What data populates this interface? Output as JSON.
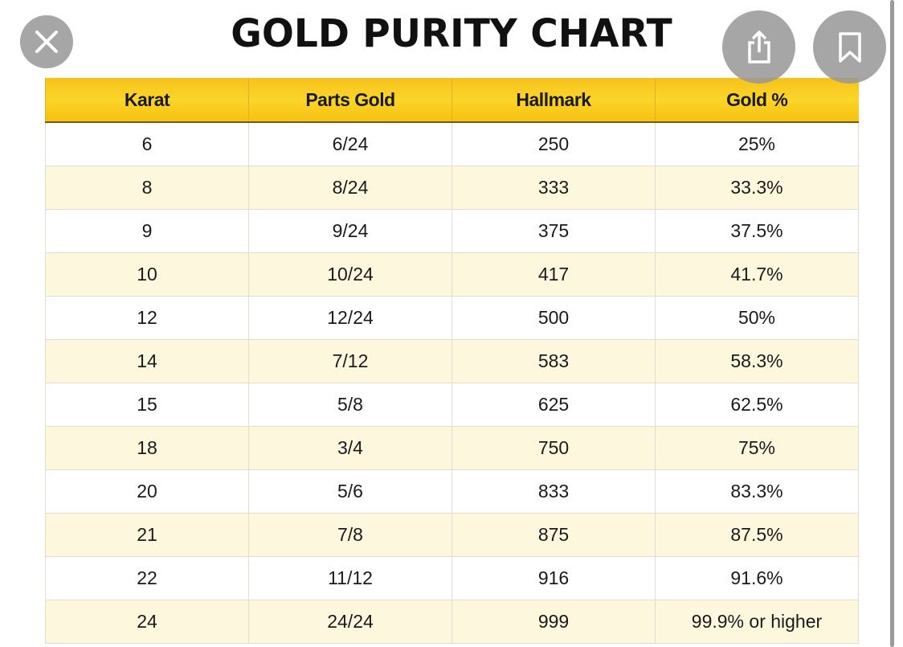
{
  "title": "GOLD PURITY CHART",
  "controls": {
    "close_icon": "close-icon",
    "share_icon": "share-icon",
    "bookmark_icon": "bookmark-icon"
  },
  "colors": {
    "header": "#f9cb1e",
    "stripe": "#fdf7de"
  },
  "table": {
    "headers": [
      "Karat",
      "Parts Gold",
      "Hallmark",
      "Gold %"
    ],
    "rows": [
      [
        "6",
        "6/24",
        "250",
        "25%"
      ],
      [
        "8",
        "8/24",
        "333",
        "33.3%"
      ],
      [
        "9",
        "9/24",
        "375",
        "37.5%"
      ],
      [
        "10",
        "10/24",
        "417",
        "41.7%"
      ],
      [
        "12",
        "12/24",
        "500",
        "50%"
      ],
      [
        "14",
        "7/12",
        "583",
        "58.3%"
      ],
      [
        "15",
        "5/8",
        "625",
        "62.5%"
      ],
      [
        "18",
        "3/4",
        "750",
        "75%"
      ],
      [
        "20",
        "5/6",
        "833",
        "83.3%"
      ],
      [
        "21",
        "7/8",
        "875",
        "87.5%"
      ],
      [
        "22",
        "11/12",
        "916",
        "91.6%"
      ],
      [
        "24",
        "24/24",
        "999",
        "99.9% or higher"
      ]
    ]
  }
}
